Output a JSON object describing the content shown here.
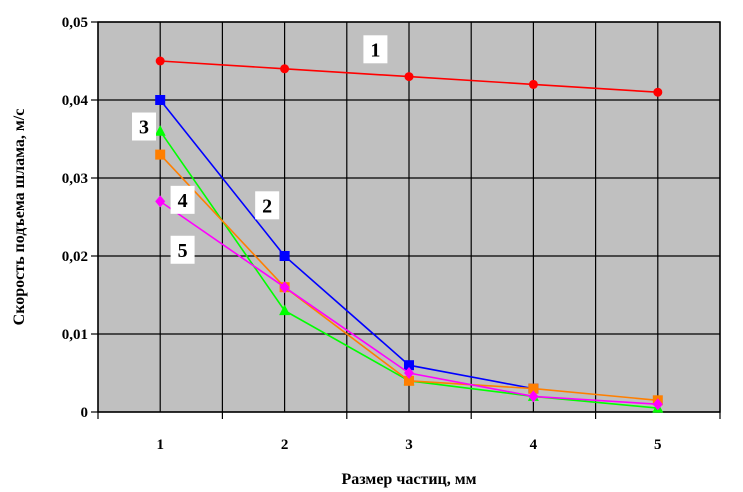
{
  "chart_data": {
    "type": "line",
    "xlabel": "Размер частиц, мм",
    "ylabel": "Скорость подъема шлама, м/с",
    "x": [
      1,
      2,
      3,
      4,
      5
    ],
    "x_ticks": [
      "1",
      "2",
      "3",
      "4",
      "5"
    ],
    "xlim": [
      0.5,
      5.5
    ],
    "ylim": [
      0,
      0.05
    ],
    "y_ticks": [
      "0",
      "0,01",
      "0,02",
      "0,03",
      "0,04",
      "0,05"
    ],
    "grid": true,
    "plot_background": "#c0c0c0",
    "series": [
      {
        "name": "1",
        "color": "#ff0000",
        "marker": "circle",
        "x": [
          1,
          2,
          3,
          4,
          5
        ],
        "values": [
          0.045,
          0.044,
          0.043,
          0.042,
          0.041
        ]
      },
      {
        "name": "2",
        "color": "#0000ff",
        "marker": "square",
        "x": [
          1,
          2,
          3,
          4
        ],
        "values": [
          0.04,
          0.02,
          0.006,
          0.003
        ]
      },
      {
        "name": "3",
        "color": "#00ff00",
        "marker": "triangle",
        "x": [
          1,
          2,
          3,
          4,
          5
        ],
        "values": [
          0.036,
          0.013,
          0.004,
          0.002,
          0.0005
        ]
      },
      {
        "name": "4",
        "color": "#ff7f00",
        "marker": "square",
        "x": [
          1,
          2,
          3,
          4,
          5
        ],
        "values": [
          0.033,
          0.016,
          0.004,
          0.003,
          0.0015
        ]
      },
      {
        "name": "5",
        "color": "#ff00ff",
        "marker": "diamond",
        "x": [
          1,
          2,
          3,
          4,
          5
        ],
        "values": [
          0.027,
          0.016,
          0.005,
          0.002,
          0.001
        ]
      }
    ],
    "curve_labels": [
      {
        "text": "1",
        "x": 2.73,
        "y": 0.0465
      },
      {
        "text": "2",
        "x": 1.86,
        "y": 0.0265
      },
      {
        "text": "3",
        "x": 0.87,
        "y": 0.0366
      },
      {
        "text": "4",
        "x": 1.18,
        "y": 0.0272
      },
      {
        "text": "5",
        "x": 1.18,
        "y": 0.0208
      }
    ]
  }
}
